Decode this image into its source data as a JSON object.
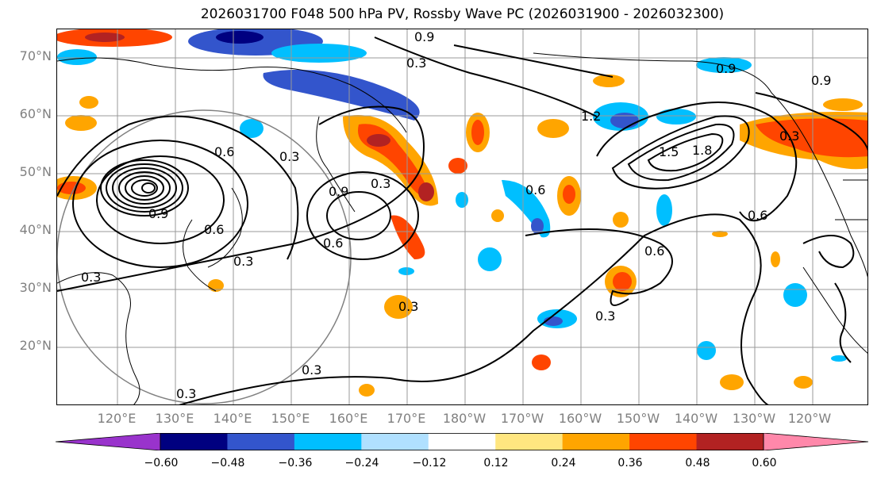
{
  "title": "2026031700 F048 500 hPa PV, Rossby Wave PC (2026031900 - 2026032300)",
  "lat_labels": [
    "70°N",
    "60°N",
    "50°N",
    "40°N",
    "30°N",
    "20°N"
  ],
  "lon_labels": [
    "120°E",
    "130°E",
    "140°E",
    "150°E",
    "160°E",
    "170°E",
    "180°W",
    "170°W",
    "160°W",
    "150°W",
    "140°W",
    "130°W",
    "120°W"
  ],
  "colorbar": {
    "ticks": [
      "−0.60",
      "−0.48",
      "−0.36",
      "−0.24",
      "−0.12",
      "0.12",
      "0.24",
      "0.36",
      "0.48",
      "0.60"
    ],
    "colors": [
      "#9933cc",
      "#000080",
      "#3355cc",
      "#00bfff",
      "#b0e0ff",
      "#ffffff",
      "#ffe680",
      "#ffa500",
      "#ff4500",
      "#b22222",
      "#ff88aa"
    ]
  },
  "contour_labels": [
    "0.3",
    "0.6",
    "0.9",
    "0.3",
    "0.6",
    "0.9",
    "1.5",
    "1.8",
    "0.3",
    "0.6",
    "0.9",
    "0.3",
    "0.6",
    "0.3",
    "0.3",
    "0.3",
    "0.6",
    "0.9",
    "1.2",
    "0.3",
    "0.6",
    "0.9",
    "0.3",
    "0.3"
  ],
  "colors": {
    "contour": "#000000",
    "grid": "#808080",
    "label": "#808080"
  }
}
